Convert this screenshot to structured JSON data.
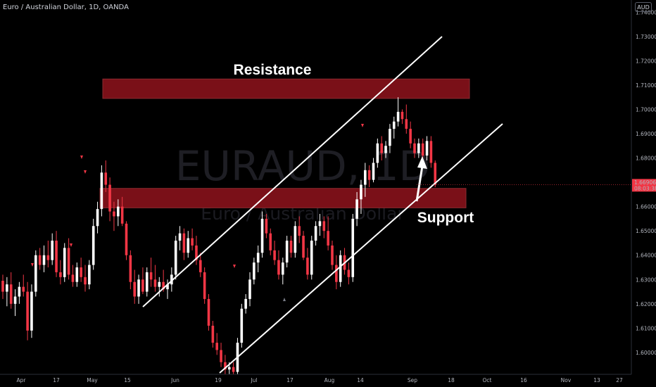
{
  "header": {
    "symbol_title": "Euro / Australian Dollar, 1D, OANDA",
    "currency_badge": "AUD"
  },
  "watermark": {
    "ticker": "EURAUD, 1D",
    "name": "Euro / Australian Dollar"
  },
  "annotations": {
    "resistance_label": "Resistance",
    "support_label": "Support"
  },
  "colors": {
    "up_candle": "#ffffff",
    "down_candle": "#f23645",
    "zone_fill": "#7a1018",
    "price_tag": "#f23645",
    "background": "#000000"
  },
  "chart_data": {
    "type": "candlestick",
    "symbol": "EURAUD",
    "timeframe": "1D",
    "ylim": [
      1.591,
      1.745
    ],
    "y_ticks": [
      1.6,
      1.61,
      1.62,
      1.63,
      1.64,
      1.65,
      1.66,
      1.67,
      1.68,
      1.69,
      1.7,
      1.71,
      1.72,
      1.73,
      1.74
    ],
    "y_tick_labels": [
      "1.60000",
      "1.61000",
      "1.62000",
      "1.63000",
      "1.64000",
      "1.65000",
      "1.66000",
      "1.67000",
      "1.68000",
      "1.69000",
      "1.70000",
      "1.71000",
      "1.72000",
      "1.73000",
      "1.74000"
    ],
    "x_tick_labels": [
      "Apr",
      "17",
      "May",
      "15",
      "Jun",
      "19",
      "Jul",
      "17",
      "Aug",
      "14",
      "Sep",
      "18",
      "Oct",
      "16",
      "Nov",
      "13",
      "27"
    ],
    "last_price": "1.66906",
    "countdown": "08:03:38",
    "zones": [
      {
        "name": "Resistance",
        "low": 1.7045,
        "high": 1.7125
      },
      {
        "name": "Support",
        "low": 1.6595,
        "high": 1.6675
      }
    ],
    "candles": [
      [
        1.6295,
        1.632,
        1.622,
        1.625
      ],
      [
        1.625,
        1.631,
        1.619,
        1.628
      ],
      [
        1.628,
        1.633,
        1.618,
        1.62
      ],
      [
        1.62,
        1.626,
        1.615,
        1.623
      ],
      [
        1.623,
        1.629,
        1.62,
        1.627
      ],
      [
        1.627,
        1.632,
        1.623,
        1.625
      ],
      [
        1.625,
        1.629,
        1.605,
        1.609
      ],
      [
        1.609,
        1.628,
        1.606,
        1.625
      ],
      [
        1.625,
        1.642,
        1.623,
        1.64
      ],
      [
        1.64,
        1.643,
        1.634,
        1.636
      ],
      [
        1.636,
        1.644,
        1.633,
        1.64
      ],
      [
        1.64,
        1.646,
        1.635,
        1.638
      ],
      [
        1.638,
        1.649,
        1.636,
        1.646
      ],
      [
        1.646,
        1.65,
        1.631,
        1.633
      ],
      [
        1.633,
        1.638,
        1.628,
        1.631
      ],
      [
        1.631,
        1.645,
        1.629,
        1.643
      ],
      [
        1.643,
        1.647,
        1.63,
        1.632
      ],
      [
        1.632,
        1.636,
        1.627,
        1.629
      ],
      [
        1.629,
        1.637,
        1.627,
        1.635
      ],
      [
        1.635,
        1.639,
        1.629,
        1.631
      ],
      [
        1.631,
        1.636,
        1.625,
        1.628
      ],
      [
        1.628,
        1.638,
        1.626,
        1.636
      ],
      [
        1.636,
        1.655,
        1.634,
        1.652
      ],
      [
        1.652,
        1.662,
        1.649,
        1.659
      ],
      [
        1.659,
        1.677,
        1.656,
        1.674
      ],
      [
        1.674,
        1.679,
        1.666,
        1.669
      ],
      [
        1.669,
        1.672,
        1.654,
        1.658
      ],
      [
        1.658,
        1.662,
        1.65,
        1.656
      ],
      [
        1.656,
        1.663,
        1.652,
        1.66
      ],
      [
        1.66,
        1.664,
        1.652,
        1.653
      ],
      [
        1.653,
        1.654,
        1.638,
        1.64
      ],
      [
        1.64,
        1.642,
        1.626,
        1.629
      ],
      [
        1.629,
        1.634,
        1.62,
        1.623
      ],
      [
        1.623,
        1.632,
        1.62,
        1.63
      ],
      [
        1.63,
        1.635,
        1.624,
        1.625
      ],
      [
        1.625,
        1.635,
        1.623,
        1.633
      ],
      [
        1.633,
        1.639,
        1.627,
        1.63
      ],
      [
        1.63,
        1.636,
        1.625,
        1.627
      ],
      [
        1.627,
        1.631,
        1.623,
        1.629
      ],
      [
        1.629,
        1.634,
        1.625,
        1.626
      ],
      [
        1.626,
        1.63,
        1.622,
        1.628
      ],
      [
        1.628,
        1.635,
        1.625,
        1.632
      ],
      [
        1.632,
        1.648,
        1.63,
        1.646
      ],
      [
        1.646,
        1.652,
        1.642,
        1.649
      ],
      [
        1.649,
        1.651,
        1.638,
        1.641
      ],
      [
        1.641,
        1.65,
        1.639,
        1.647
      ],
      [
        1.647,
        1.651,
        1.642,
        1.644
      ],
      [
        1.644,
        1.648,
        1.636,
        1.638
      ],
      [
        1.638,
        1.641,
        1.631,
        1.633
      ],
      [
        1.633,
        1.635,
        1.62,
        1.622
      ],
      [
        1.622,
        1.624,
        1.609,
        1.611
      ],
      [
        1.611,
        1.613,
        1.602,
        1.604
      ],
      [
        1.604,
        1.608,
        1.599,
        1.601
      ],
      [
        1.601,
        1.604,
        1.594,
        1.596
      ],
      [
        1.596,
        1.599,
        1.591,
        1.593
      ],
      [
        1.593,
        1.596,
        1.591,
        1.594
      ],
      [
        1.594,
        1.596,
        1.591,
        1.592
      ],
      [
        1.592,
        1.606,
        1.591,
        1.604
      ],
      [
        1.604,
        1.62,
        1.602,
        1.618
      ],
      [
        1.618,
        1.624,
        1.616,
        1.622
      ],
      [
        1.622,
        1.633,
        1.619,
        1.63
      ],
      [
        1.63,
        1.639,
        1.628,
        1.637
      ],
      [
        1.637,
        1.644,
        1.633,
        1.641
      ],
      [
        1.641,
        1.658,
        1.639,
        1.655
      ],
      [
        1.655,
        1.657,
        1.647,
        1.649
      ],
      [
        1.649,
        1.651,
        1.64,
        1.642
      ],
      [
        1.642,
        1.646,
        1.636,
        1.638
      ],
      [
        1.638,
        1.642,
        1.63,
        1.632
      ],
      [
        1.632,
        1.639,
        1.628,
        1.637
      ],
      [
        1.637,
        1.648,
        1.635,
        1.646
      ],
      [
        1.646,
        1.648,
        1.639,
        1.641
      ],
      [
        1.641,
        1.654,
        1.639,
        1.652
      ],
      [
        1.652,
        1.656,
        1.645,
        1.648
      ],
      [
        1.648,
        1.65,
        1.638,
        1.639
      ],
      [
        1.639,
        1.643,
        1.63,
        1.632
      ],
      [
        1.632,
        1.648,
        1.63,
        1.646
      ],
      [
        1.646,
        1.654,
        1.644,
        1.652
      ],
      [
        1.652,
        1.657,
        1.648,
        1.654
      ],
      [
        1.654,
        1.656,
        1.647,
        1.65
      ],
      [
        1.65,
        1.656,
        1.642,
        1.644
      ],
      [
        1.644,
        1.646,
        1.634,
        1.636
      ],
      [
        1.636,
        1.64,
        1.626,
        1.629
      ],
      [
        1.629,
        1.642,
        1.627,
        1.64
      ],
      [
        1.64,
        1.643,
        1.632,
        1.634
      ],
      [
        1.634,
        1.637,
        1.628,
        1.631
      ],
      [
        1.631,
        1.657,
        1.629,
        1.655
      ],
      [
        1.655,
        1.666,
        1.652,
        1.663
      ],
      [
        1.663,
        1.671,
        1.657,
        1.669
      ],
      [
        1.669,
        1.678,
        1.664,
        1.675
      ],
      [
        1.675,
        1.677,
        1.668,
        1.671
      ],
      [
        1.671,
        1.68,
        1.67,
        1.678
      ],
      [
        1.678,
        1.688,
        1.676,
        1.686
      ],
      [
        1.686,
        1.689,
        1.679,
        1.682
      ],
      [
        1.682,
        1.687,
        1.68,
        1.685
      ],
      [
        1.685,
        1.694,
        1.682,
        1.692
      ],
      [
        1.692,
        1.697,
        1.688,
        1.695
      ],
      [
        1.695,
        1.705,
        1.693,
        1.699
      ],
      [
        1.699,
        1.7,
        1.694,
        1.696
      ],
      [
        1.696,
        1.702,
        1.69,
        1.692
      ],
      [
        1.692,
        1.695,
        1.684,
        1.686
      ],
      [
        1.686,
        1.688,
        1.68,
        1.682
      ],
      [
        1.682,
        1.688,
        1.68,
        1.686
      ],
      [
        1.686,
        1.688,
        1.679,
        1.681
      ],
      [
        1.681,
        1.689,
        1.679,
        1.687
      ],
      [
        1.687,
        1.689,
        1.676,
        1.678
      ],
      [
        1.678,
        1.679,
        1.668,
        1.669
      ]
    ]
  }
}
